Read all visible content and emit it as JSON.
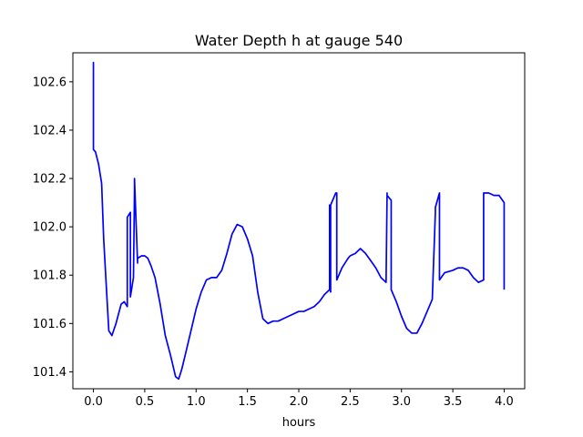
{
  "chart_data": {
    "type": "line",
    "title": "Water Depth h at gauge 540",
    "xlabel": "hours",
    "ylabel": "",
    "xlim": [
      -0.2,
      4.2
    ],
    "ylim": [
      101.33,
      102.72
    ],
    "xticks": [
      0.0,
      0.5,
      1.0,
      1.5,
      2.0,
      2.5,
      3.0,
      3.5,
      4.0
    ],
    "xtick_labels": [
      "0.0",
      "0.5",
      "1.0",
      "1.5",
      "2.0",
      "2.5",
      "3.0",
      "3.5",
      "4.0"
    ],
    "yticks": [
      101.4,
      101.6,
      101.8,
      102.0,
      102.2,
      102.4,
      102.6
    ],
    "ytick_labels": [
      "101.4",
      "101.6",
      "101.8",
      "102.0",
      "102.2",
      "102.4",
      "102.6"
    ],
    "grid": false,
    "legend": "none",
    "series": [
      {
        "color": "#0000ff",
        "x": [
          0.0,
          0.0,
          0.0,
          0.02,
          0.05,
          0.08,
          0.1,
          0.13,
          0.15,
          0.18,
          0.22,
          0.27,
          0.3,
          0.33,
          0.33,
          0.36,
          0.36,
          0.39,
          0.4,
          0.4,
          0.43,
          0.43,
          0.47,
          0.5,
          0.53,
          0.56,
          0.6,
          0.65,
          0.7,
          0.75,
          0.8,
          0.83,
          0.86,
          0.9,
          0.95,
          1.0,
          1.05,
          1.1,
          1.15,
          1.2,
          1.25,
          1.3,
          1.35,
          1.4,
          1.45,
          1.5,
          1.55,
          1.6,
          1.65,
          1.7,
          1.75,
          1.8,
          1.85,
          1.9,
          1.95,
          2.0,
          2.05,
          2.1,
          2.15,
          2.2,
          2.25,
          2.3,
          2.3,
          2.31,
          2.31,
          2.36,
          2.37,
          2.37,
          2.42,
          2.48,
          2.5,
          2.55,
          2.6,
          2.65,
          2.7,
          2.75,
          2.8,
          2.85,
          2.86,
          2.86,
          2.9,
          2.9,
          2.95,
          3.0,
          3.05,
          3.1,
          3.15,
          3.2,
          3.25,
          3.3,
          3.33,
          3.33,
          3.37,
          3.37,
          3.42,
          3.5,
          3.55,
          3.6,
          3.65,
          3.7,
          3.75,
          3.8,
          3.8,
          3.85,
          3.9,
          3.95,
          4.0,
          4.0
        ],
        "y": [
          102.32,
          102.68,
          102.32,
          102.31,
          102.26,
          102.18,
          101.95,
          101.72,
          101.57,
          101.55,
          101.6,
          101.68,
          101.69,
          101.67,
          102.04,
          102.06,
          101.71,
          101.79,
          102.15,
          102.2,
          101.85,
          101.87,
          101.88,
          101.88,
          101.87,
          101.84,
          101.79,
          101.68,
          101.55,
          101.47,
          101.38,
          101.37,
          101.41,
          101.48,
          101.57,
          101.66,
          101.73,
          101.78,
          101.79,
          101.79,
          101.82,
          101.89,
          101.97,
          102.01,
          102.0,
          101.95,
          101.88,
          101.73,
          101.62,
          101.6,
          101.61,
          101.61,
          101.62,
          101.63,
          101.64,
          101.65,
          101.65,
          101.66,
          101.67,
          101.69,
          101.72,
          101.74,
          102.09,
          101.73,
          102.09,
          102.14,
          102.14,
          101.78,
          101.83,
          101.87,
          101.88,
          101.89,
          101.91,
          101.89,
          101.86,
          101.83,
          101.79,
          101.77,
          102.14,
          102.13,
          102.11,
          101.74,
          101.69,
          101.63,
          101.58,
          101.56,
          101.56,
          101.6,
          101.65,
          101.7,
          102.06,
          102.08,
          102.14,
          101.78,
          101.81,
          101.82,
          101.83,
          101.83,
          101.82,
          101.79,
          101.77,
          101.78,
          102.14,
          102.14,
          102.13,
          102.13,
          102.1,
          101.74
        ]
      }
    ]
  }
}
